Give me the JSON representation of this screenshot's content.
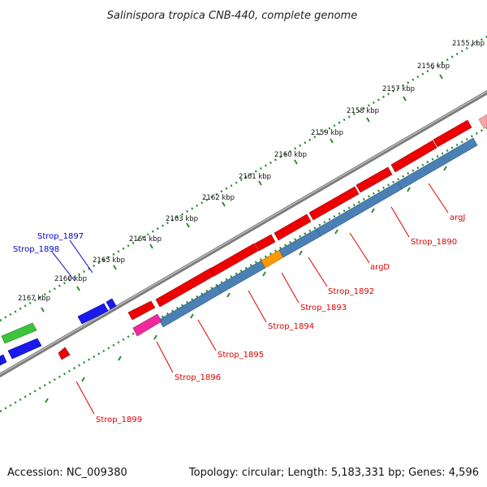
{
  "title": "Salinispora tropica CNB-440, complete genome",
  "footer": {
    "accession": "Accession: NC_009380",
    "stats": "Topology: circular; Length: 5,183,331 bp; Genes: 4,596"
  },
  "colors": {
    "backbone": "#8a8a8a",
    "tick_marks": "#2e8b2e",
    "red_genes": "#ee0000",
    "blue_genes": "#4a80b4",
    "label_red": "#dd0000",
    "label_blue": "#0000cc"
  },
  "scale_labels": [
    "2155 kbp",
    "2156 kbp",
    "2157 kbp",
    "2158 kbp",
    "2159 kbp",
    "2160 kbp",
    "2161 kbp",
    "2162 kbp",
    "2163 kbp",
    "2164 kbp",
    "2165 kbp",
    "2166 kbp",
    "2167 kbp"
  ],
  "gene_labels": [
    {
      "text": "argJ",
      "color": "red"
    },
    {
      "text": "Strop_1890",
      "color": "red"
    },
    {
      "text": "argD",
      "color": "red"
    },
    {
      "text": "Strop_1892",
      "color": "red"
    },
    {
      "text": "Strop_1893",
      "color": "red"
    },
    {
      "text": "Strop_1894",
      "color": "red"
    },
    {
      "text": "Strop_1895",
      "color": "red"
    },
    {
      "text": "Strop_1896",
      "color": "red"
    },
    {
      "text": "Strop_1899",
      "color": "red"
    },
    {
      "text": "Strop_1897",
      "color": "blue"
    },
    {
      "text": "Strop_1898",
      "color": "blue"
    }
  ]
}
